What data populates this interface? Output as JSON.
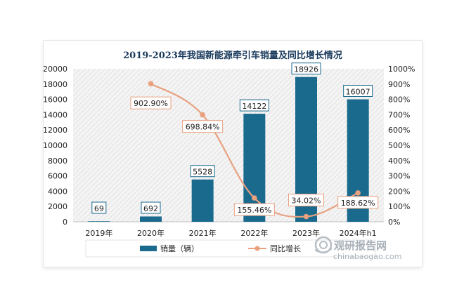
{
  "chart_data": {
    "type": "bar+line",
    "title": "2019-2023年我国新能源牵引车销量及同比增长情况",
    "categories": [
      "2019年",
      "2020年",
      "2021年",
      "2022年",
      "2023年",
      "2024年h1"
    ],
    "series": [
      {
        "name": "销量（辆）",
        "type": "bar",
        "axis": "left",
        "values": [
          69,
          692,
          5528,
          14122,
          18926,
          16007
        ],
        "labels": [
          "69",
          "692",
          "5528",
          "14122",
          "18926",
          "16007"
        ]
      },
      {
        "name": "同比增长",
        "type": "line",
        "axis": "right",
        "values": [
          null,
          902.9,
          698.84,
          155.46,
          34.02,
          188.62
        ],
        "labels": [
          "",
          "902.90%",
          "698.84%",
          "155.46%",
          "34.02%",
          "188.62%"
        ]
      }
    ],
    "y_left": {
      "min": 0,
      "max": 20000,
      "ticks": [
        "0",
        "2000",
        "4000",
        "6000",
        "8000",
        "10000",
        "12000",
        "14000",
        "16000",
        "18000",
        "20000"
      ]
    },
    "y_right": {
      "min": 0,
      "max": 1000,
      "ticks": [
        "0%",
        "100%",
        "200%",
        "300%",
        "400%",
        "500%",
        "600%",
        "700%",
        "800%",
        "900%",
        "1000%"
      ]
    },
    "colors": {
      "bar": "#1a6a8e",
      "line": "#e8a07f",
      "title": "#1a3a5c"
    },
    "legend_position": "bottom"
  },
  "watermark": {
    "brand": "观研报告网",
    "url": "chinabaogao.com",
    "icon": "logo-icon"
  }
}
